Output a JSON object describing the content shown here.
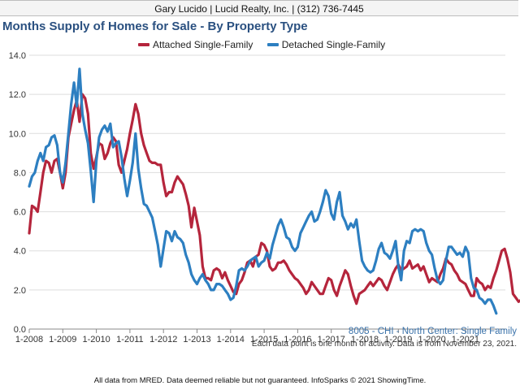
{
  "header": {
    "text": "Gary Lucido | Lucid Realty, Inc. | (312) 736-7445"
  },
  "footer": {
    "text": "All data from MRED. Data deemed reliable but not guaranteed. InfoSparks © 2021 ShowingTime."
  },
  "notes": {
    "subject": "8005 - CHI - North Center: Single Family",
    "data_note": "Each data point is one month of activity. Data is from November 23, 2021."
  },
  "chart_data": {
    "type": "line",
    "title": "Months Supply of Homes for Sale - By Property Type",
    "xlabel": "",
    "ylabel": "",
    "ylim": [
      0,
      14
    ],
    "y_ticks": [
      "0.0",
      "2.0",
      "4.0",
      "6.0",
      "8.0",
      "10.0",
      "12.0",
      "14.0"
    ],
    "x_ticks": [
      "1-2008",
      "1-2009",
      "1-2010",
      "1-2011",
      "1-2012",
      "1-2013",
      "1-2014",
      "1-2015",
      "1-2016",
      "1-2017",
      "1-2018",
      "1-2019",
      "1-2020",
      "1-2021"
    ],
    "x_start": "1-2008",
    "grid": true,
    "legend_position": "top",
    "series": [
      {
        "name": "Attached Single-Family",
        "color": "#b5253c",
        "values": [
          4.9,
          6.3,
          6.2,
          6.0,
          7.0,
          8.0,
          8.6,
          8.5,
          8.0,
          8.6,
          8.7,
          8.0,
          7.2,
          8.0,
          9.8,
          10.5,
          11.2,
          11.7,
          10.6,
          12.0,
          11.8,
          11.0,
          9.0,
          8.2,
          8.8,
          9.5,
          9.4,
          8.7,
          9.0,
          9.5,
          9.8,
          9.6,
          8.4,
          8.0,
          8.6,
          9.2,
          10.0,
          10.7,
          11.5,
          11.0,
          10.0,
          9.4,
          9.0,
          8.6,
          8.5,
          8.5,
          8.4,
          8.4,
          7.5,
          6.8,
          7.0,
          7.0,
          7.5,
          7.8,
          7.6,
          7.4,
          6.9,
          6.3,
          5.2,
          6.2,
          5.5,
          4.8,
          3.2,
          2.6,
          2.6,
          2.5,
          3.0,
          3.1,
          3.0,
          2.6,
          2.9,
          2.5,
          2.2,
          1.9,
          1.8,
          2.3,
          2.5,
          2.9,
          3.4,
          3.5,
          3.2,
          3.7,
          3.8,
          4.4,
          4.3,
          4.0,
          3.2,
          3.0,
          3.1,
          3.4,
          3.4,
          3.5,
          3.3,
          3.0,
          2.8,
          2.6,
          2.5,
          2.3,
          2.1,
          1.8,
          2.0,
          2.4,
          2.2,
          2.0,
          1.8,
          1.8,
          2.2,
          2.6,
          2.5,
          2.0,
          1.7,
          2.2,
          2.6,
          3.0,
          2.8,
          2.2,
          1.7,
          1.3,
          1.8,
          1.9,
          2.0,
          2.2,
          2.4,
          2.2,
          2.4,
          2.6,
          2.5,
          2.2,
          2.0,
          2.4,
          2.8,
          3.1,
          3.3,
          3.0,
          3.1,
          3.2,
          3.5,
          3.1,
          3.2,
          3.3,
          3.0,
          3.2,
          2.8,
          2.4,
          2.6,
          2.5,
          2.4,
          2.8,
          3.1,
          3.6,
          3.4,
          3.3,
          3.0,
          2.8,
          2.5,
          2.4,
          2.3,
          2.0,
          1.7,
          1.7,
          2.6,
          2.4,
          2.3,
          2.0,
          2.2,
          2.1,
          2.6,
          3.0,
          3.5,
          4.0,
          4.1,
          3.6,
          2.9,
          1.8,
          1.6,
          1.4,
          1.5,
          1.7,
          1.7,
          1.7,
          1.6,
          1.4
        ]
      },
      {
        "name": "Detached Single-Family",
        "color": "#2d7fc1",
        "values": [
          7.3,
          7.8,
          8.0,
          8.6,
          9.0,
          8.6,
          9.3,
          9.4,
          9.8,
          9.9,
          9.4,
          8.0,
          7.5,
          8.5,
          10.0,
          11.5,
          12.6,
          11.4,
          13.3,
          11.0,
          10.2,
          9.5,
          8.1,
          6.5,
          8.6,
          9.8,
          10.2,
          10.4,
          10.1,
          10.5,
          9.3,
          9.5,
          9.6,
          8.8,
          7.7,
          6.8,
          7.6,
          8.5,
          10.0,
          8.2,
          7.2,
          6.4,
          6.3,
          6.0,
          5.7,
          5.0,
          4.3,
          3.2,
          4.1,
          5.0,
          4.9,
          4.5,
          5.0,
          4.7,
          4.6,
          4.4,
          3.8,
          3.4,
          2.8,
          2.5,
          2.3,
          2.6,
          2.8,
          2.5,
          2.3,
          2.0,
          2.0,
          2.3,
          2.3,
          2.2,
          2.0,
          1.8,
          1.5,
          1.6,
          2.2,
          3.0,
          3.1,
          3.0,
          3.2,
          3.5,
          3.6,
          3.7,
          3.2,
          3.4,
          3.5,
          3.9,
          3.6,
          4.3,
          4.8,
          5.3,
          5.6,
          5.2,
          4.7,
          4.6,
          4.2,
          4.0,
          4.2,
          4.9,
          5.2,
          5.5,
          5.8,
          6.0,
          5.5,
          5.6,
          6.0,
          6.5,
          7.1,
          6.8,
          5.9,
          5.6,
          6.5,
          7.0,
          5.8,
          5.5,
          5.1,
          5.4,
          5.2,
          5.6,
          4.5,
          3.5,
          3.2,
          3.0,
          2.9,
          3.0,
          3.5,
          4.1,
          4.4,
          3.9,
          3.8,
          3.6,
          4.0,
          4.5,
          3.2,
          2.5,
          4.0,
          4.5,
          4.4,
          5.0,
          5.1,
          5.0,
          5.1,
          5.0,
          4.4,
          4.0,
          3.8,
          3.1,
          2.5,
          2.3,
          2.5,
          3.5,
          4.2,
          4.2,
          4.0,
          3.8,
          3.9,
          3.7,
          4.2,
          3.9,
          2.6,
          2.1,
          2.0,
          1.6,
          1.5,
          1.3,
          1.5,
          1.5,
          1.2,
          0.8
        ]
      }
    ]
  }
}
